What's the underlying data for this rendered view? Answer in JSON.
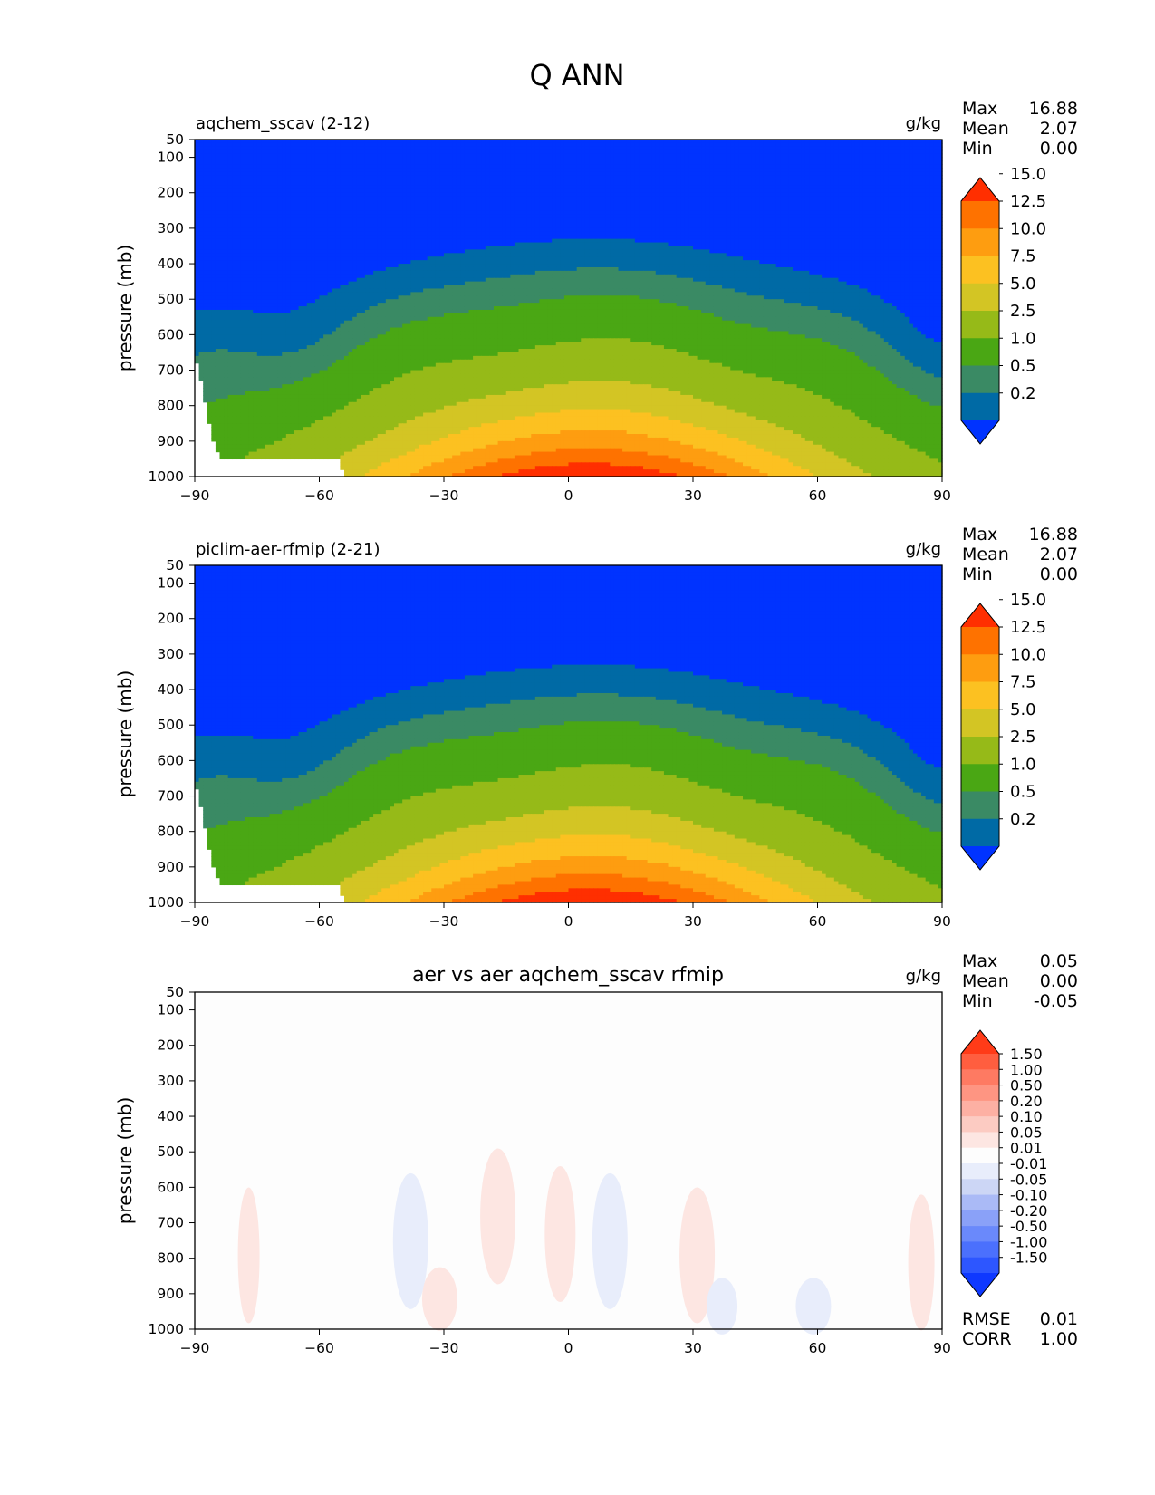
{
  "figure": {
    "title": "Q ANN"
  },
  "colors": {
    "abs": [
      "#0033ff",
      "#006aa5",
      "#3a8a64",
      "#4aa714",
      "#96ba18",
      "#d3c524",
      "#fcc121",
      "#fe9d10",
      "#fe7200",
      "#ff2f00"
    ],
    "diff": [
      "#0e38ff",
      "#2d56ff",
      "#4b70fd",
      "#6a89fb",
      "#8aa1f8",
      "#aabaf6",
      "#ccd6f5",
      "#e8edfb",
      "#fdfdfd",
      "#fde6e2",
      "#fccbc2",
      "#fdb0a3",
      "#fe9582",
      "#fe7a62",
      "#ff5e3f",
      "#ff3b18"
    ]
  },
  "chart_data": [
    {
      "type": "heatmap",
      "title": "aqchem_sscav (2-12)",
      "units": "g/kg",
      "ylabel": "pressure (mb)",
      "xlim": [
        -90,
        90
      ],
      "ylim": [
        1000,
        50
      ],
      "xticks": [
        "−90",
        "−60",
        "−30",
        "0",
        "30",
        "60",
        "90"
      ],
      "yticks": [
        "50",
        "100",
        "200",
        "300",
        "400",
        "500",
        "600",
        "700",
        "800",
        "900",
        "1000"
      ],
      "stats": {
        "max_label": "Max",
        "max": "16.88",
        "mean_label": "Mean",
        "mean": "2.07",
        "min_label": "Min",
        "min": "0.00"
      },
      "colorbar": {
        "levels": [
          0.2,
          0.5,
          1.0,
          2.5,
          5.0,
          7.5,
          10.0,
          12.5,
          15.0
        ],
        "labels": [
          "0.2",
          "0.5",
          "1.0",
          "2.5",
          "5.0",
          "7.5",
          "10.0",
          "12.5",
          "15.0"
        ],
        "extend": "both"
      },
      "field": {
        "lat": [
          -90,
          -60,
          -30,
          0,
          30,
          60,
          90
        ],
        "lev": [
          1000,
          950,
          900,
          850,
          800,
          700,
          600,
          500,
          400,
          300,
          200,
          100,
          50
        ],
        "variable": "Q"
      }
    },
    {
      "type": "heatmap",
      "title": "piclim-aer-rfmip (2-21)",
      "units": "g/kg",
      "ylabel": "pressure (mb)",
      "xlim": [
        -90,
        90
      ],
      "ylim": [
        1000,
        50
      ],
      "xticks": [
        "−90",
        "−60",
        "−30",
        "0",
        "30",
        "60",
        "90"
      ],
      "yticks": [
        "50",
        "100",
        "200",
        "300",
        "400",
        "500",
        "600",
        "700",
        "800",
        "900",
        "1000"
      ],
      "stats": {
        "max_label": "Max",
        "max": "16.88",
        "mean_label": "Mean",
        "mean": "2.07",
        "min_label": "Min",
        "min": "0.00"
      },
      "colorbar": {
        "levels": [
          0.2,
          0.5,
          1.0,
          2.5,
          5.0,
          7.5,
          10.0,
          12.5,
          15.0
        ],
        "labels": [
          "0.2",
          "0.5",
          "1.0",
          "2.5",
          "5.0",
          "7.5",
          "10.0",
          "12.5",
          "15.0"
        ],
        "extend": "both"
      }
    },
    {
      "type": "heatmap",
      "title": "aer vs aer aqchem_sscav rfmip",
      "units": "g/kg",
      "ylabel": "pressure (mb)",
      "xlim": [
        -90,
        90
      ],
      "ylim": [
        1000,
        50
      ],
      "xticks": [
        "−90",
        "−60",
        "−30",
        "0",
        "30",
        "60",
        "90"
      ],
      "yticks": [
        "50",
        "100",
        "200",
        "300",
        "400",
        "500",
        "600",
        "700",
        "800",
        "900",
        "1000"
      ],
      "stats": {
        "max_label": "Max",
        "max": "0.05",
        "mean_label": "Mean",
        "mean": "0.00",
        "min_label": "Min",
        "min": "-0.05",
        "rmse_label": "RMSE",
        "rmse": "0.01",
        "corr_label": "CORR",
        "corr": "1.00"
      },
      "colorbar": {
        "levels": [
          -1.5,
          -1.0,
          -0.5,
          -0.2,
          -0.1,
          -0.05,
          -0.01,
          0.01,
          0.05,
          0.1,
          0.2,
          0.5,
          1.0,
          1.5
        ],
        "labels": [
          "-1.50",
          "-1.00",
          "-0.50",
          "-0.20",
          "-0.10",
          "-0.05",
          "-0.01",
          "0.01",
          "0.05",
          "0.10",
          "0.20",
          "0.50",
          "1.00",
          "1.50"
        ],
        "extend": "both"
      },
      "anomalies": [
        {
          "sign": "+",
          "lat": -77,
          "lev": 760
        },
        {
          "sign": "-",
          "lat": -38,
          "lev": 720
        },
        {
          "sign": "+",
          "lat": -31,
          "lev": 900
        },
        {
          "sign": "+",
          "lat": -17,
          "lev": 650
        },
        {
          "sign": "+",
          "lat": -2,
          "lev": 700
        },
        {
          "sign": "-",
          "lat": 10,
          "lev": 720
        },
        {
          "sign": "+",
          "lat": 31,
          "lev": 760
        },
        {
          "sign": "-",
          "lat": 37,
          "lev": 930
        },
        {
          "sign": "-",
          "lat": 59,
          "lev": 930
        },
        {
          "sign": "+",
          "lat": 85,
          "lev": 780
        }
      ]
    }
  ]
}
